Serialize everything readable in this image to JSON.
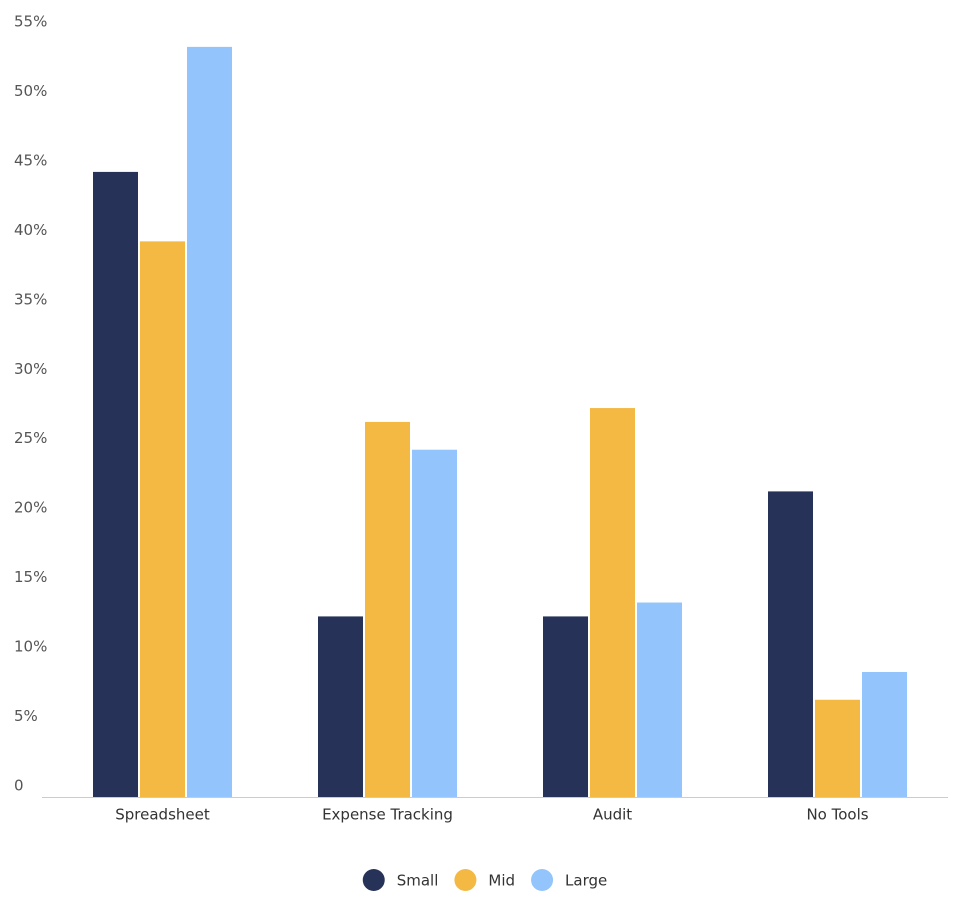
{
  "chart_data": {
    "type": "bar",
    "categories": [
      "Spreadsheet",
      "Expense Tracking",
      "Audit",
      "No Tools"
    ],
    "series": [
      {
        "name": "Small",
        "color": "#263257",
        "values": [
          45,
          13,
          13,
          22
        ]
      },
      {
        "name": "Mid",
        "color": "#f3b942",
        "values": [
          40,
          27,
          28,
          7
        ]
      },
      {
        "name": "Large",
        "color": "#93c4fb",
        "values": [
          54,
          25,
          14,
          9
        ]
      }
    ],
    "ylim": [
      0,
      55
    ],
    "yticks": [
      0,
      {
        "value": 5,
        "label": "5%"
      },
      {
        "value": 10,
        "label": "10%"
      },
      {
        "value": 15,
        "label": "15%"
      },
      {
        "value": 20,
        "label": "20%"
      },
      {
        "value": 25,
        "label": "25%"
      },
      {
        "value": 30,
        "label": "30%"
      },
      {
        "value": 35,
        "label": "35%"
      },
      {
        "value": 40,
        "label": "40%"
      },
      {
        "value": 45,
        "label": "45%"
      },
      {
        "value": 50,
        "label": "50%"
      },
      {
        "value": 55,
        "label": "55%"
      }
    ],
    "grid": false,
    "legend": "bottom"
  }
}
